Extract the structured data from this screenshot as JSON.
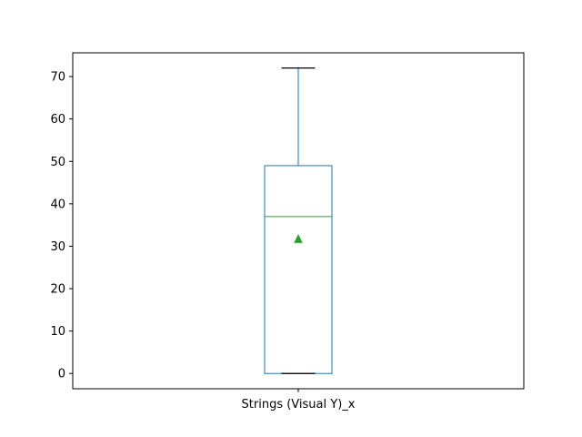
{
  "chart_data": {
    "type": "box",
    "title": "",
    "xlabel": "",
    "ylabel": "",
    "categories": [
      "Strings (Visual Y)_x"
    ],
    "ylim": [
      -3.6,
      75.6
    ],
    "yticks": [
      0,
      10,
      20,
      30,
      40,
      50,
      60,
      70
    ],
    "grid": false,
    "boxes": [
      {
        "category": "Strings (Visual Y)_x",
        "whisker_low": 0,
        "q1": 0,
        "median": 37,
        "q3": 49,
        "whisker_high": 72,
        "mean": 31.8
      }
    ],
    "colors": {
      "box": "#1f77b4",
      "median": "#2ca02c",
      "mean_marker": "#2ca02c",
      "caps": "#000000"
    }
  }
}
